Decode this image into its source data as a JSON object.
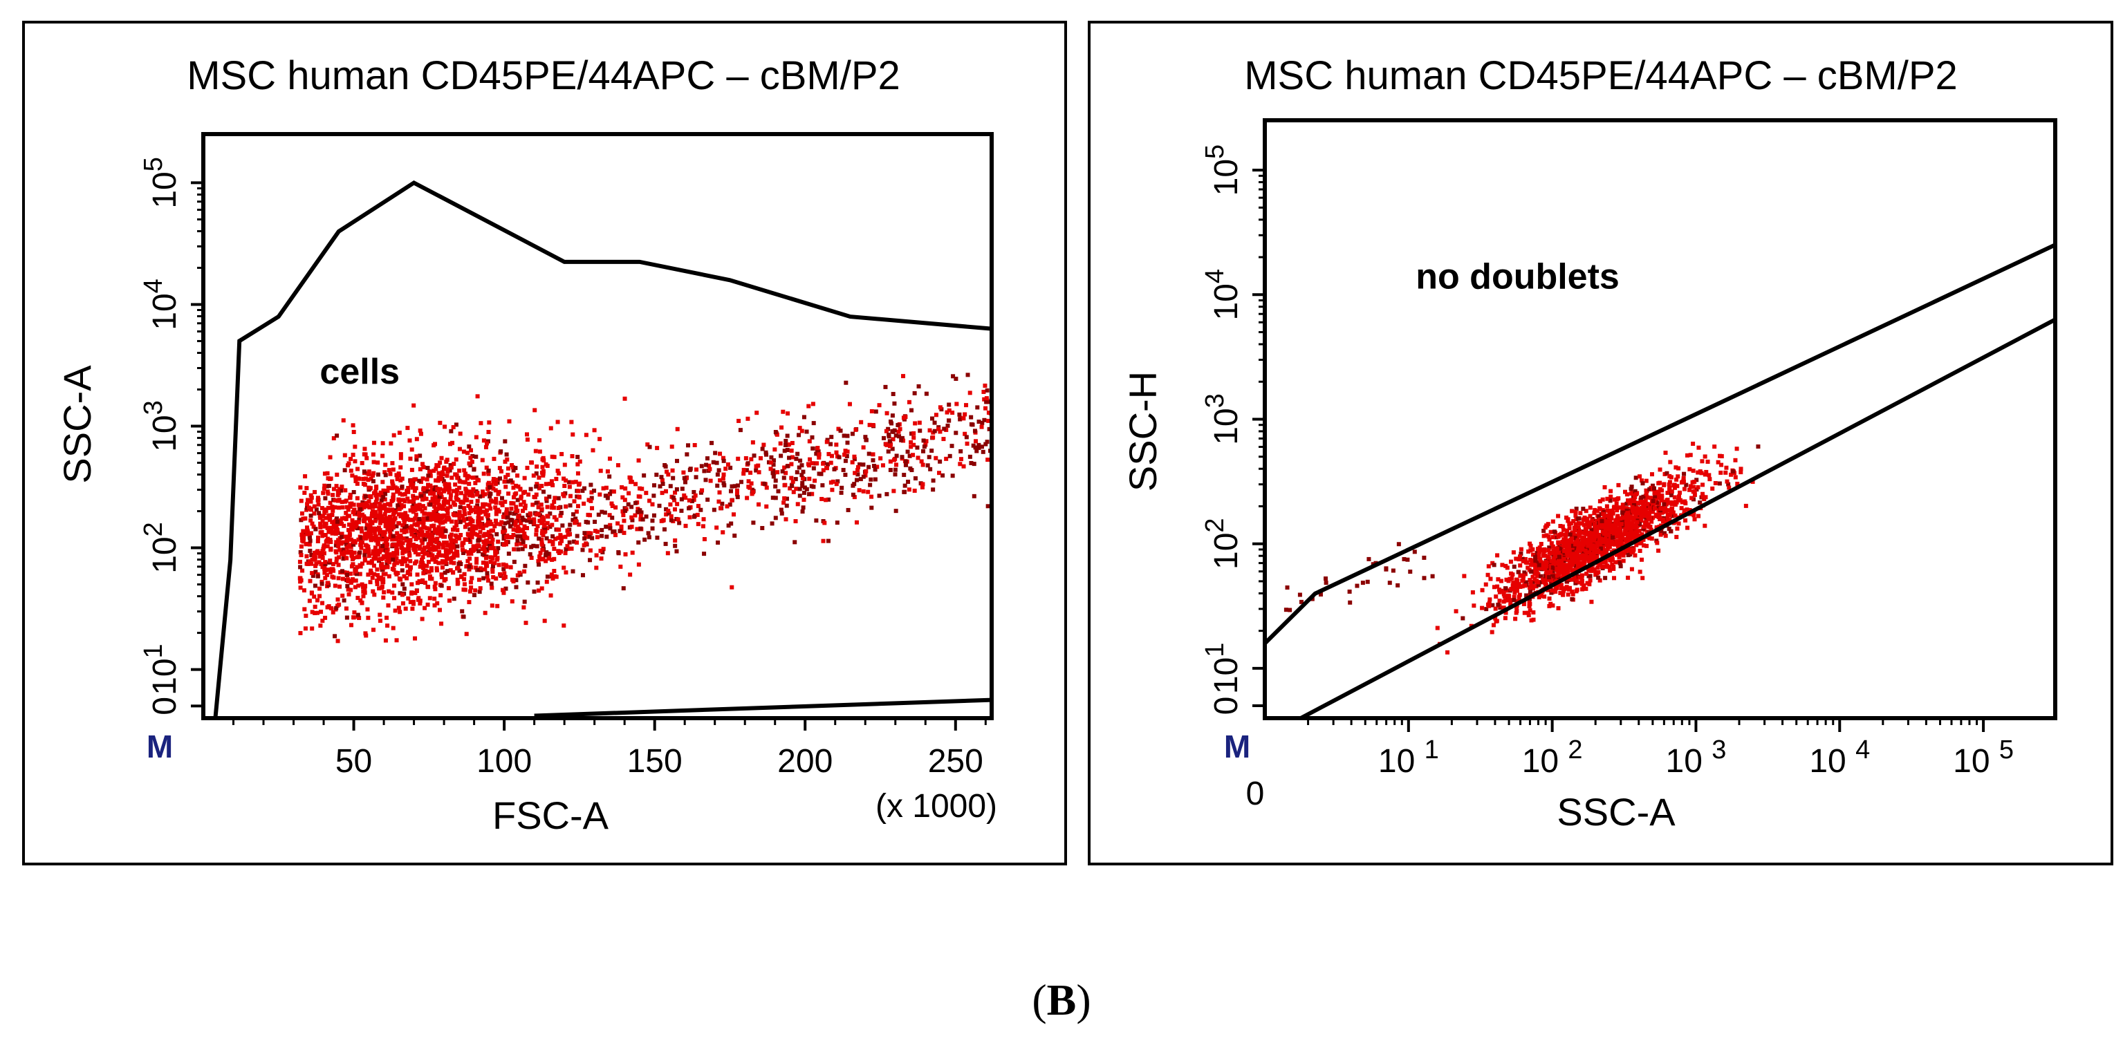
{
  "figure_label": {
    "open": "(",
    "letter": "B",
    "close": ")"
  },
  "colors": {
    "dots": "#e60000",
    "dots_dark": "#8b0000",
    "gate": "#000000",
    "marker": "#1a237e"
  },
  "chart_data": [
    {
      "type": "scatter",
      "title": "MSC human CD45PE/44APC  – cBM/P2",
      "xlabel": "FSC-A",
      "ylabel": "SSC-A",
      "x_scale": "linear",
      "x_unit_label": "(x 1000)",
      "xlim": [
        0,
        262
      ],
      "x_ticks": [
        50,
        100,
        150,
        200,
        250
      ],
      "x_tick_labels": [
        "50",
        "100",
        "150",
        "200",
        "250"
      ],
      "y_scale": "log",
      "ylim_log10": [
        0.6,
        5.4
      ],
      "y_ticks": [
        {
          "base": "0",
          "exp": ""
        },
        {
          "base": "10",
          "exp": "1"
        },
        {
          "base": "10",
          "exp": "2"
        },
        {
          "base": "10",
          "exp": "3"
        },
        {
          "base": "10",
          "exp": "4"
        },
        {
          "base": "10",
          "exp": "5"
        }
      ],
      "y_tick_log10": [
        0.7,
        1,
        2,
        3,
        4,
        5
      ],
      "marker_label": "M",
      "gate": {
        "label": "cells",
        "label_at": [
          52,
          3.35
        ],
        "vertices": [
          [
            4,
            0.6
          ],
          [
            9,
            1.9
          ],
          [
            12,
            3.7
          ],
          [
            25,
            3.9
          ],
          [
            45,
            4.6
          ],
          [
            70,
            5.0
          ],
          [
            120,
            4.35
          ],
          [
            145,
            4.35
          ],
          [
            175,
            4.2
          ],
          [
            215,
            3.9
          ],
          [
            262,
            3.8
          ]
        ],
        "bottom_edge": [
          [
            110,
            0.62
          ],
          [
            262,
            0.75
          ]
        ]
      },
      "population": {
        "center": [
          68,
          2.15
        ],
        "spread": [
          28,
          0.32
        ],
        "tail_to": [
          262,
          3.0
        ],
        "points_approx": 3200
      }
    },
    {
      "type": "scatter",
      "title": "MSC human CD45PE/44APC  – cBM/P2",
      "xlabel": "SSC-A",
      "ylabel": "SSC-H",
      "x_scale": "log",
      "xlim_log10": [
        0.0,
        5.5
      ],
      "x_ticks": [
        {
          "base": "10",
          "exp": "1"
        },
        {
          "base": "10",
          "exp": "2"
        },
        {
          "base": "10",
          "exp": "3"
        },
        {
          "base": "10",
          "exp": "4"
        },
        {
          "base": "10",
          "exp": "5"
        }
      ],
      "x_tick_log10": [
        1,
        2,
        3,
        4,
        5
      ],
      "x_zero_label": "0",
      "y_scale": "log",
      "ylim_log10": [
        0.6,
        5.4
      ],
      "y_ticks": [
        {
          "base": "0",
          "exp": ""
        },
        {
          "base": "10",
          "exp": "1"
        },
        {
          "base": "10",
          "exp": "2"
        },
        {
          "base": "10",
          "exp": "3"
        },
        {
          "base": "10",
          "exp": "4"
        },
        {
          "base": "10",
          "exp": "5"
        }
      ],
      "y_tick_log10": [
        0.7,
        1,
        2,
        3,
        4,
        5
      ],
      "marker_label": "M",
      "gate": {
        "label": "no doublets",
        "label_at": [
          1.05,
          4.05
        ],
        "upper_line": [
          [
            0.0,
            1.2
          ],
          [
            0.35,
            1.6
          ],
          [
            5.5,
            4.4
          ]
        ],
        "lower_line": [
          [
            0.25,
            0.6
          ],
          [
            5.5,
            3.8
          ]
        ]
      },
      "population": {
        "center": [
          2.3,
          2.0
        ],
        "spread": [
          0.35,
          0.14
        ],
        "slope": 0.62,
        "points_approx": 1800
      }
    }
  ]
}
